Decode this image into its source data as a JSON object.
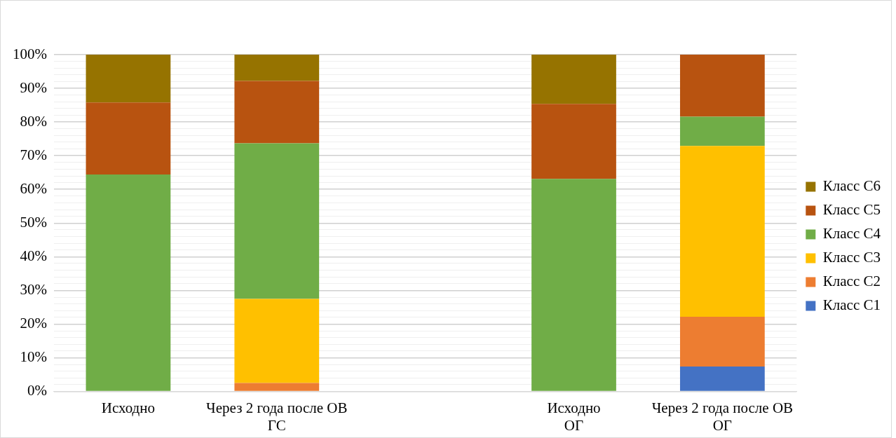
{
  "chart_data": {
    "type": "bar",
    "stacked": true,
    "categories": [
      "Исходно",
      "Через 2 года после ОВ ГС",
      null,
      "Исходно ОГ",
      "Через 2 года после ОВ ОГ"
    ],
    "series": [
      {
        "name": "Класс С1",
        "color": "#4472c4",
        "values": [
          0,
          0,
          null,
          0,
          7.4
        ]
      },
      {
        "name": "Класс С2",
        "color": "#ed7d31",
        "values": [
          0,
          2.5,
          null,
          0,
          14.8
        ]
      },
      {
        "name": "Класс С3",
        "color": "#ffc000",
        "values": [
          0,
          25,
          null,
          0,
          50.7
        ]
      },
      {
        "name": "Класс С4",
        "color": "#70ad47",
        "values": [
          64.4,
          46.2,
          null,
          63.1,
          8.7
        ]
      },
      {
        "name": "Класс С5",
        "color": "#b85310",
        "values": [
          21.4,
          18.5,
          null,
          22.3,
          18.4
        ]
      },
      {
        "name": "Класс С6",
        "color": "#967300",
        "values": [
          14.2,
          7.8,
          null,
          14.6,
          0
        ]
      }
    ],
    "ylim": [
      0,
      100
    ],
    "yticks": [
      {
        "value": 0,
        "label": "0%"
      },
      {
        "value": 2,
        "label": null
      },
      {
        "value": 4,
        "label": null
      },
      {
        "value": 6,
        "label": null
      },
      {
        "value": 8,
        "label": null
      },
      {
        "value": 10,
        "label": "10%"
      },
      {
        "value": 12,
        "label": null
      },
      {
        "value": 14,
        "label": null
      },
      {
        "value": 16,
        "label": null
      },
      {
        "value": 18,
        "label": null
      },
      {
        "value": 20,
        "label": "20%"
      },
      {
        "value": 22,
        "label": null
      },
      {
        "value": 24,
        "label": null
      },
      {
        "value": 26,
        "label": null
      },
      {
        "value": 28,
        "label": null
      },
      {
        "value": 30,
        "label": "30%"
      },
      {
        "value": 32,
        "label": null
      },
      {
        "value": 34,
        "label": null
      },
      {
        "value": 36,
        "label": null
      },
      {
        "value": 38,
        "label": null
      },
      {
        "value": 40,
        "label": "40%"
      },
      {
        "value": 42,
        "label": null
      },
      {
        "value": 44,
        "label": null
      },
      {
        "value": 46,
        "label": null
      },
      {
        "value": 48,
        "label": null
      },
      {
        "value": 50,
        "label": "50%"
      },
      {
        "value": 52,
        "label": null
      },
      {
        "value": 54,
        "label": null
      },
      {
        "value": 56,
        "label": null
      },
      {
        "value": 58,
        "label": null
      },
      {
        "value": 60,
        "label": "60%"
      },
      {
        "value": 62,
        "label": null
      },
      {
        "value": 64,
        "label": null
      },
      {
        "value": 66,
        "label": null
      },
      {
        "value": 68,
        "label": null
      },
      {
        "value": 70,
        "label": "70%"
      },
      {
        "value": 72,
        "label": null
      },
      {
        "value": 74,
        "label": null
      },
      {
        "value": 76,
        "label": null
      },
      {
        "value": 78,
        "label": null
      },
      {
        "value": 80,
        "label": "80%"
      },
      {
        "value": 82,
        "label": null
      },
      {
        "value": 84,
        "label": null
      },
      {
        "value": 86,
        "label": null
      },
      {
        "value": 88,
        "label": null
      },
      {
        "value": 90,
        "label": "90%"
      },
      {
        "value": 92,
        "label": null
      },
      {
        "value": 94,
        "label": null
      },
      {
        "value": 96,
        "label": null
      },
      {
        "value": 98,
        "label": null
      },
      {
        "value": 100,
        "label": "100%"
      }
    ],
    "grid": "y",
    "legend": "right"
  }
}
